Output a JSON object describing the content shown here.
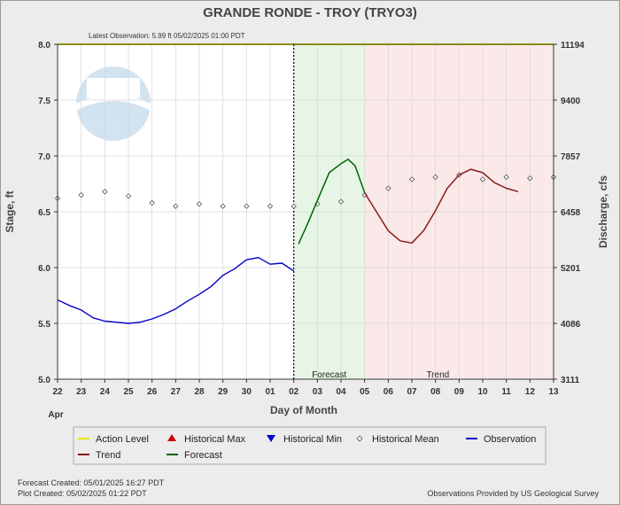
{
  "title": "GRANDE RONDE - TROY  (TRYO3)",
  "latest_observation": "Latest Observation:  5.99 ft 05/02/2025 01:00 PDT",
  "footer": {
    "forecast_created": "Forecast Created: 05/01/2025 16:27 PDT",
    "plot_created": "Plot Created: 05/02/2025 01:22 PDT",
    "attribution": "Observations Provided by US Geological Survey"
  },
  "legend": [
    {
      "label": "Action Level",
      "color": "#e6e600",
      "symbol": "line"
    },
    {
      "label": "Historical Max",
      "color": "#cc0000",
      "symbol": "triangle-up"
    },
    {
      "label": "Historical Min",
      "color": "#0000cc",
      "symbol": "triangle-down"
    },
    {
      "label": "Historical Mean",
      "color": "#555555",
      "symbol": "diamond"
    },
    {
      "label": "Observation",
      "color": "#0000cc",
      "symbol": "line"
    },
    {
      "label": "Trend",
      "color": "#8b1a1a",
      "symbol": "line"
    },
    {
      "label": "Forecast",
      "color": "#006400",
      "symbol": "line"
    }
  ],
  "chart_data": {
    "type": "line",
    "xlabel": "Day of Month",
    "ylabel": "Stage, ft",
    "y2label": "Discharge, cfs",
    "month_label": "Apr",
    "x_tick_labels": [
      "22",
      "23",
      "24",
      "25",
      "26",
      "27",
      "28",
      "29",
      "30",
      "01",
      "02",
      "03",
      "04",
      "05",
      "06",
      "07",
      "08",
      "09",
      "10",
      "11",
      "12",
      "13"
    ],
    "xlim": [
      0,
      21
    ],
    "ylim": [
      5.0,
      8.0
    ],
    "y_ticks": [
      "5.0",
      "5.5",
      "6.0",
      "6.5",
      "7.0",
      "7.5",
      "8.0"
    ],
    "y2_ticks": [
      "3111",
      "4086",
      "5201",
      "6458",
      "7857",
      "9400",
      "11194"
    ],
    "grid": true,
    "action_level": 8.0,
    "current_time_x": 10.0,
    "regions": [
      {
        "label": "Forecast",
        "start": 10.0,
        "end": 13.0,
        "color": "#e6f5e6"
      },
      {
        "label": "Trend",
        "start": 13.0,
        "end": 21.0,
        "color": "#fbe8e8"
      }
    ],
    "series": [
      {
        "name": "Observation",
        "color": "#0000cc",
        "x": [
          0.0,
          0.5,
          1.0,
          1.5,
          2.0,
          2.5,
          3.0,
          3.5,
          4.0,
          4.5,
          5.0,
          5.5,
          6.0,
          6.5,
          7.0,
          7.5,
          8.0,
          8.5,
          9.0,
          9.5,
          10.0
        ],
        "y": [
          5.71,
          5.66,
          5.62,
          5.55,
          5.52,
          5.51,
          5.5,
          5.51,
          5.54,
          5.58,
          5.63,
          5.7,
          5.76,
          5.83,
          5.93,
          5.99,
          6.07,
          6.09,
          6.03,
          6.04,
          5.97
        ]
      },
      {
        "name": "Forecast",
        "color": "#006400",
        "x": [
          10.2,
          10.6,
          11.0,
          11.5,
          12.0,
          12.3,
          12.6,
          13.0
        ],
        "y": [
          6.21,
          6.4,
          6.6,
          6.85,
          6.93,
          6.97,
          6.91,
          6.67
        ]
      },
      {
        "name": "Trend",
        "color": "#8b1a1a",
        "x": [
          13.0,
          13.5,
          14.0,
          14.5,
          15.0,
          15.5,
          16.0,
          16.5,
          17.0,
          17.5,
          18.0,
          18.5,
          19.0,
          19.5
        ],
        "y": [
          6.67,
          6.5,
          6.33,
          6.24,
          6.22,
          6.33,
          6.51,
          6.71,
          6.83,
          6.88,
          6.85,
          6.76,
          6.71,
          6.68
        ]
      }
    ],
    "historical_mean": {
      "x": [
        0,
        1,
        2,
        3,
        4,
        5,
        6,
        7,
        8,
        9,
        10,
        11,
        12,
        13,
        14,
        15,
        16,
        17,
        18,
        19,
        20,
        21
      ],
      "y": [
        6.62,
        6.65,
        6.68,
        6.64,
        6.58,
        6.55,
        6.57,
        6.55,
        6.55,
        6.55,
        6.55,
        6.57,
        6.59,
        6.65,
        6.71,
        6.79,
        6.81,
        6.83,
        6.79,
        6.81,
        6.8,
        6.81
      ]
    }
  }
}
